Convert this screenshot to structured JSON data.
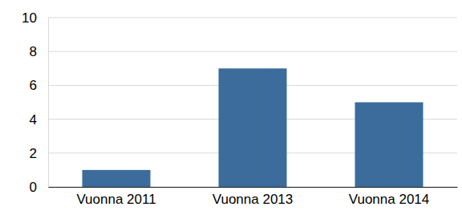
{
  "chart_data": {
    "type": "bar",
    "categories": [
      "Vuonna 2011",
      "Vuonna 2013",
      "Vuonna 2014"
    ],
    "values": [
      1,
      7,
      5
    ],
    "color": "#3b6c9b",
    "ylim": [
      0,
      10
    ],
    "yticks": [
      0,
      2,
      4,
      6,
      8,
      10
    ],
    "grid": true
  }
}
